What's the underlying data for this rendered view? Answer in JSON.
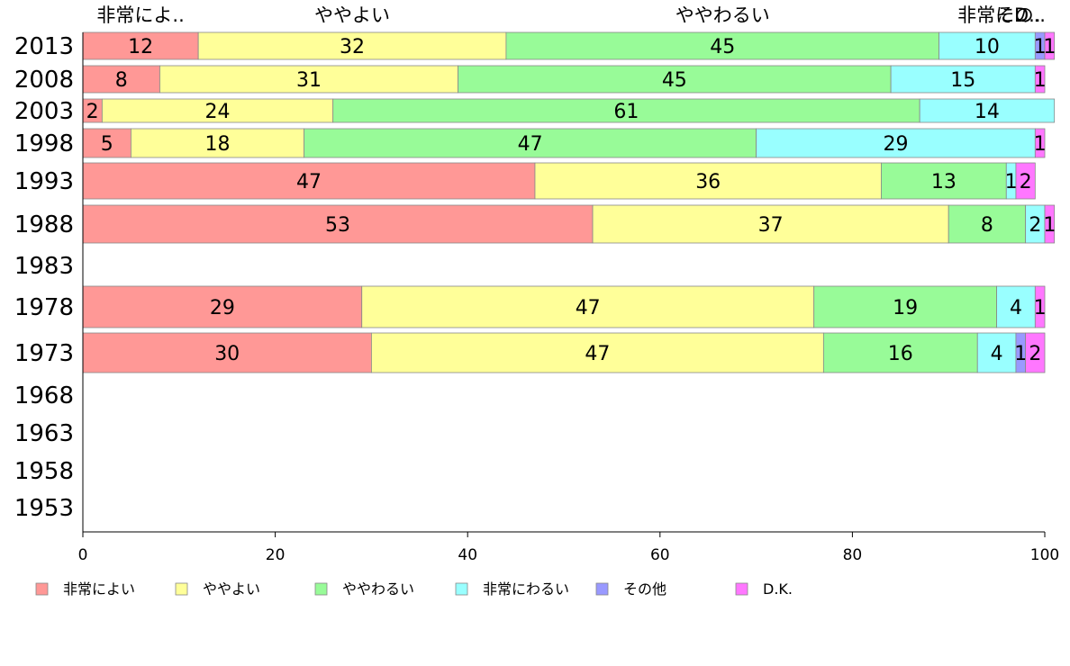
{
  "chart_data": {
    "type": "bar",
    "orientation": "horizontal",
    "stacked": true,
    "xlim": [
      0,
      100
    ],
    "x_ticks": [
      "0",
      "20",
      "40",
      "60",
      "80",
      "100"
    ],
    "top_category_labels": [
      "非常によ..",
      "ややよい",
      "ややわるい",
      "非常に..",
      "その..",
      "D.."
    ],
    "categories": [
      "2013",
      "2008",
      "2003",
      "1998",
      "1993",
      "1988",
      "1983",
      "1978",
      "1973",
      "1968",
      "1963",
      "1958",
      "1953"
    ],
    "series": [
      {
        "name": "非常によい",
        "color": "#ff9896",
        "values": [
          12,
          8,
          2,
          5,
          47,
          53,
          null,
          29,
          30,
          null,
          null,
          null,
          null
        ]
      },
      {
        "name": "ややよい",
        "color": "#ffff99",
        "values": [
          32,
          31,
          24,
          18,
          36,
          37,
          null,
          47,
          47,
          null,
          null,
          null,
          null
        ]
      },
      {
        "name": "ややわるい",
        "color": "#98fb98",
        "values": [
          45,
          45,
          61,
          47,
          13,
          8,
          null,
          19,
          16,
          null,
          null,
          null,
          null
        ]
      },
      {
        "name": "非常にわるい",
        "color": "#99ffff",
        "values": [
          10,
          15,
          14,
          29,
          1,
          2,
          null,
          4,
          4,
          null,
          null,
          null,
          null
        ]
      },
      {
        "name": "その他",
        "color": "#9999ff",
        "values": [
          1,
          0,
          0,
          0,
          0,
          0,
          null,
          0,
          1,
          null,
          null,
          null,
          null
        ]
      },
      {
        "name": "D.K.",
        "color": "#ff77ff",
        "values": [
          1,
          1,
          0,
          1,
          2,
          1,
          null,
          1,
          2,
          null,
          null,
          null,
          null
        ]
      }
    ],
    "legend_position": "bottom-left",
    "grid": false
  }
}
